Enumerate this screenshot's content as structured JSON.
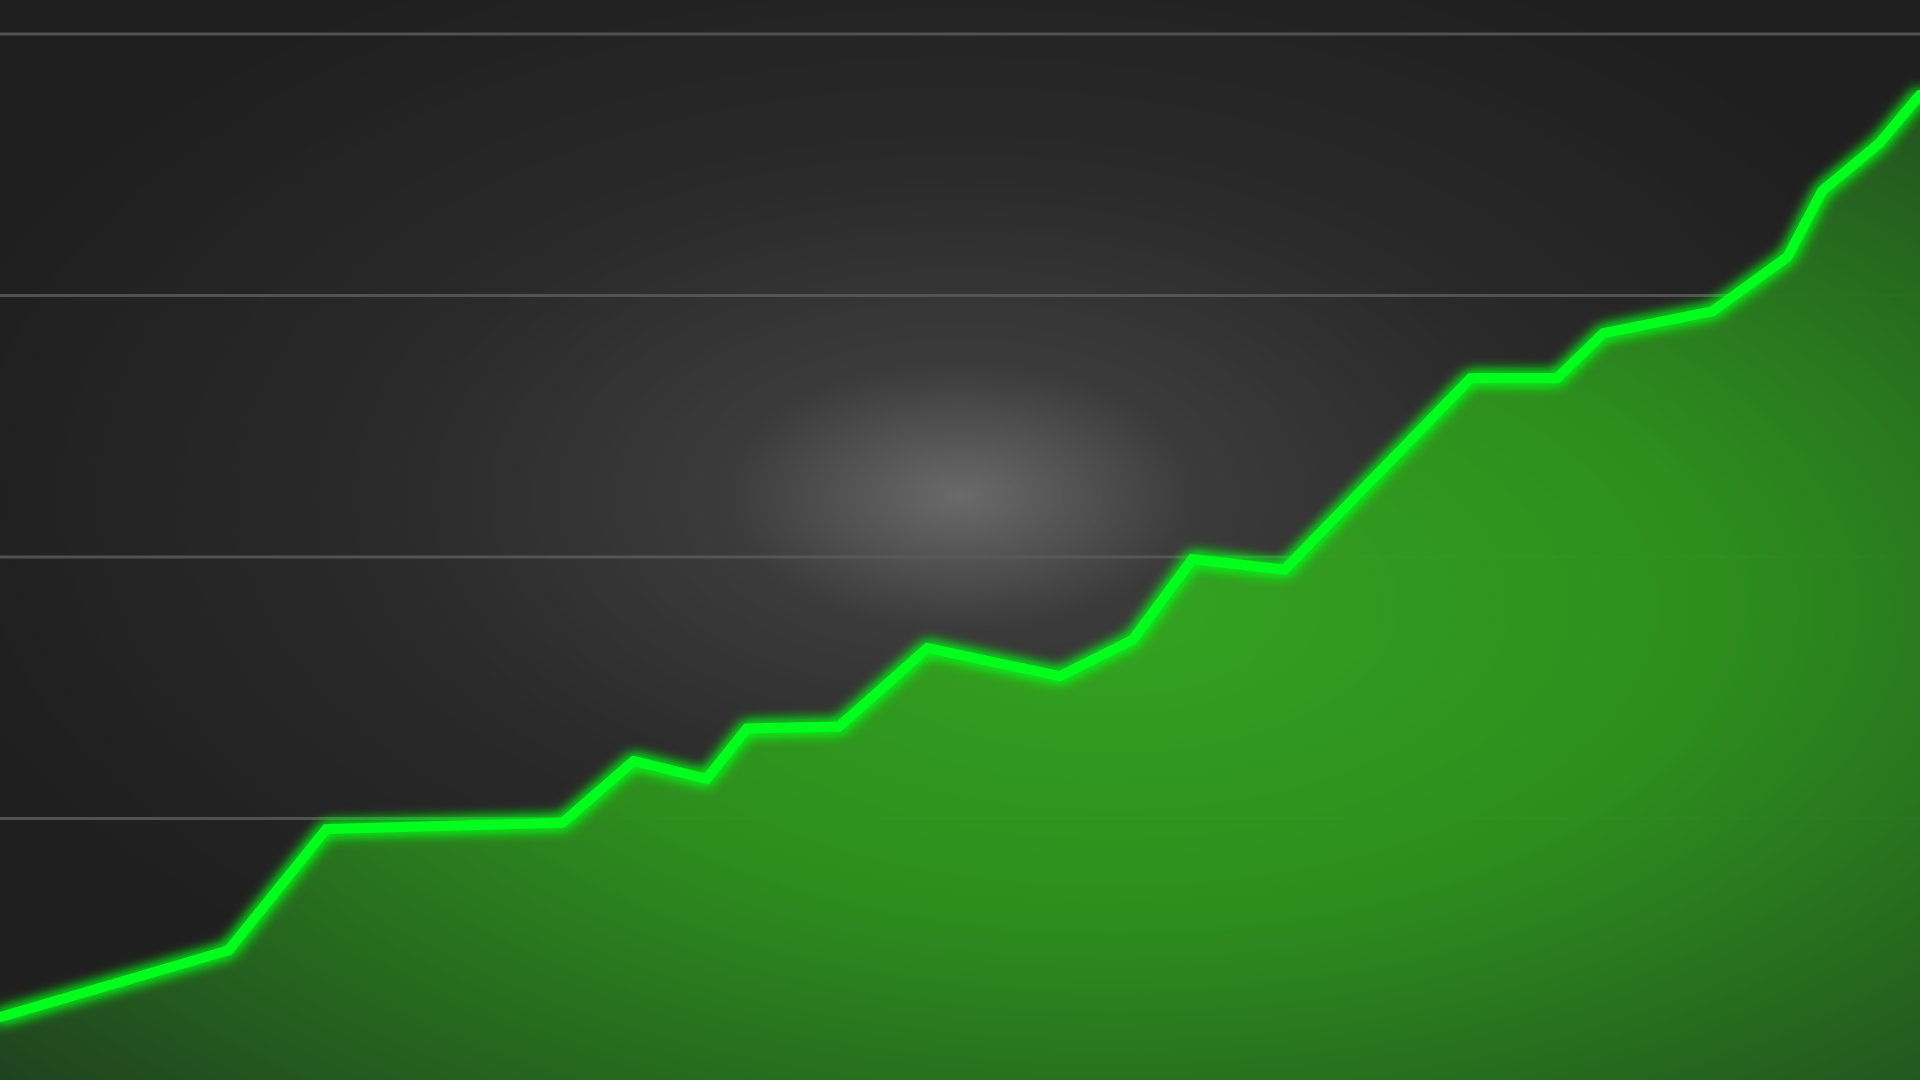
{
  "chart_data": {
    "type": "area",
    "title": "",
    "xlabel": "",
    "ylabel": "",
    "grid": true,
    "legend": "none",
    "xlim": [
      0,
      100
    ],
    "ylim": [
      0,
      100
    ],
    "gridlines_y": [
      25,
      50,
      75,
      100
    ],
    "series": [
      {
        "values": [
          {
            "x": 0.0,
            "y": 6.0
          },
          {
            "x": 11.9,
            "y": 12.4
          },
          {
            "x": 17.0,
            "y": 24.0
          },
          {
            "x": 29.3,
            "y": 24.6
          },
          {
            "x": 33.0,
            "y": 30.5
          },
          {
            "x": 36.8,
            "y": 28.8
          },
          {
            "x": 38.9,
            "y": 33.6
          },
          {
            "x": 43.7,
            "y": 33.8
          },
          {
            "x": 48.3,
            "y": 41.3
          },
          {
            "x": 55.2,
            "y": 38.6
          },
          {
            "x": 59.0,
            "y": 42.1
          },
          {
            "x": 62.1,
            "y": 49.8
          },
          {
            "x": 66.9,
            "y": 48.8
          },
          {
            "x": 76.6,
            "y": 67.1
          },
          {
            "x": 81.1,
            "y": 67.1
          },
          {
            "x": 83.5,
            "y": 71.4
          },
          {
            "x": 89.2,
            "y": 73.5
          },
          {
            "x": 93.1,
            "y": 78.7
          },
          {
            "x": 94.9,
            "y": 85.0
          },
          {
            "x": 97.9,
            "y": 89.6
          },
          {
            "x": 100.0,
            "y": 94.2
          }
        ]
      }
    ]
  },
  "colors": {
    "background": "#222222",
    "background_glow": "#6a6a6a",
    "gridline": "#5a5a5a",
    "line": "#00ff1a",
    "fill_light": "#2f9a1f",
    "fill_dark": "#1f3a1f"
  }
}
